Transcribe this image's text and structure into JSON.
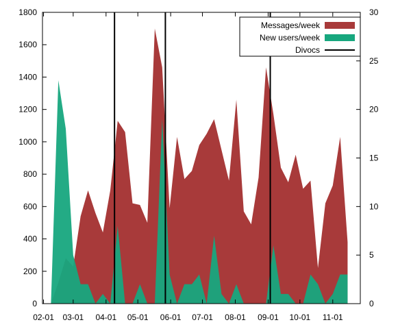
{
  "chart_data": {
    "type": "area",
    "x_ticks": [
      "02-01",
      "03-01",
      "04-01",
      "05-01",
      "06-01",
      "07-01",
      "08-01",
      "09-01",
      "10-01",
      "11-01"
    ],
    "left_axis": {
      "ylim": [
        0,
        1800
      ],
      "ticks": [
        0,
        200,
        400,
        600,
        800,
        1000,
        1200,
        1400,
        1600,
        1800
      ]
    },
    "right_axis": {
      "ylim": [
        0,
        30
      ],
      "ticks": [
        0,
        5,
        10,
        15,
        20,
        25,
        30
      ]
    },
    "legend_position": "top-right",
    "series": [
      {
        "name": "Messages/week",
        "axis": "left",
        "color": "#a83a3a",
        "points": [
          [
            "02-08",
            0
          ],
          [
            "02-15",
            130
          ],
          [
            "02-22",
            280
          ],
          [
            "03-01",
            230
          ],
          [
            "03-08",
            540
          ],
          [
            "03-15",
            700
          ],
          [
            "03-22",
            560
          ],
          [
            "03-29",
            440
          ],
          [
            "04-05",
            700
          ],
          [
            "04-12",
            1130
          ],
          [
            "04-19",
            1060
          ],
          [
            "04-26",
            620
          ],
          [
            "05-03",
            610
          ],
          [
            "05-10",
            500
          ],
          [
            "05-17",
            1700
          ],
          [
            "05-24",
            1460
          ],
          [
            "05-31",
            590
          ],
          [
            "06-07",
            1030
          ],
          [
            "06-14",
            770
          ],
          [
            "06-21",
            820
          ],
          [
            "06-28",
            980
          ],
          [
            "07-05",
            1050
          ],
          [
            "07-12",
            1140
          ],
          [
            "07-19",
            950
          ],
          [
            "07-26",
            760
          ],
          [
            "08-02",
            1260
          ],
          [
            "08-09",
            570
          ],
          [
            "08-16",
            490
          ],
          [
            "08-23",
            780
          ],
          [
            "08-30",
            1460
          ],
          [
            "09-06",
            1170
          ],
          [
            "09-13",
            840
          ],
          [
            "09-20",
            750
          ],
          [
            "09-27",
            920
          ],
          [
            "10-04",
            710
          ],
          [
            "10-11",
            760
          ],
          [
            "10-18",
            220
          ],
          [
            "10-25",
            620
          ],
          [
            "11-01",
            730
          ],
          [
            "11-08",
            1030
          ],
          [
            "11-15",
            380
          ]
        ]
      },
      {
        "name": "New users/week",
        "axis": "right",
        "color": "#17a77e",
        "points": [
          [
            "02-01",
            0
          ],
          [
            "02-08",
            0
          ],
          [
            "02-15",
            23
          ],
          [
            "02-22",
            18
          ],
          [
            "03-01",
            5
          ],
          [
            "03-08",
            2
          ],
          [
            "03-15",
            2
          ],
          [
            "03-22",
            0
          ],
          [
            "03-29",
            1
          ],
          [
            "04-05",
            0
          ],
          [
            "04-12",
            8
          ],
          [
            "04-19",
            0
          ],
          [
            "04-26",
            0
          ],
          [
            "05-03",
            2
          ],
          [
            "05-10",
            0
          ],
          [
            "05-17",
            0
          ],
          [
            "05-24",
            19
          ],
          [
            "05-31",
            3
          ],
          [
            "06-07",
            0
          ],
          [
            "06-14",
            2
          ],
          [
            "06-21",
            2
          ],
          [
            "06-28",
            3
          ],
          [
            "07-05",
            0
          ],
          [
            "07-12",
            7
          ],
          [
            "07-19",
            1
          ],
          [
            "07-26",
            0
          ],
          [
            "08-02",
            2
          ],
          [
            "08-09",
            0
          ],
          [
            "08-16",
            0
          ],
          [
            "08-23",
            0
          ],
          [
            "08-30",
            0
          ],
          [
            "09-06",
            6
          ],
          [
            "09-13",
            1
          ],
          [
            "09-20",
            1
          ],
          [
            "09-27",
            0
          ],
          [
            "10-04",
            0
          ],
          [
            "10-11",
            3
          ],
          [
            "10-18",
            2
          ],
          [
            "10-25",
            0
          ],
          [
            "11-01",
            1
          ],
          [
            "11-08",
            3
          ],
          [
            "11-15",
            3
          ]
        ]
      }
    ],
    "divocs": {
      "name": "Divocs",
      "color": "#000000",
      "dates": [
        "04-09",
        "05-27",
        "09-03"
      ]
    }
  }
}
